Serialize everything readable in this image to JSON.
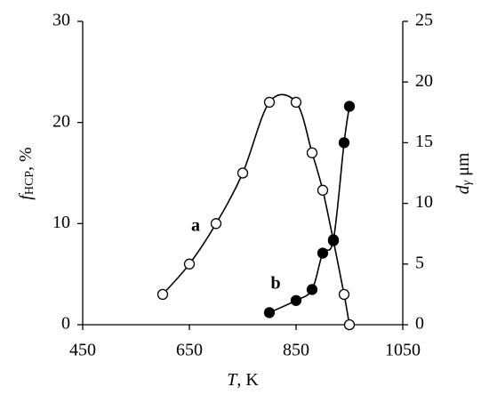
{
  "chart_data": {
    "type": "line",
    "xlabel": [
      "T",
      ", K"
    ],
    "ylabel": [
      "f",
      "HCP",
      ", %"
    ],
    "y2label": [
      "d",
      "γ",
      " μm"
    ],
    "xlim": [
      450,
      1050
    ],
    "xticks": [
      450,
      650,
      850,
      1050
    ],
    "ylim": [
      0,
      30
    ],
    "yticks": [
      0,
      10,
      20,
      30
    ],
    "y2lim": [
      0,
      25
    ],
    "y2ticks": [
      0,
      5,
      10,
      15,
      20,
      25
    ],
    "series": [
      {
        "name": "a",
        "marker": "open",
        "color": "#000000",
        "x": [
          600,
          650,
          700,
          750,
          800,
          850,
          880,
          900,
          920,
          940,
          950
        ],
        "values": [
          3,
          6,
          10,
          15,
          22,
          22,
          17,
          13.3,
          8.3,
          3,
          0
        ]
      },
      {
        "name": "b",
        "marker": "filled",
        "color": "#000000",
        "axis": "y2",
        "x": [
          800,
          850,
          880,
          900,
          920,
          940,
          950
        ],
        "values": [
          1,
          2,
          2.9,
          5.9,
          7,
          15,
          18
        ]
      }
    ]
  }
}
